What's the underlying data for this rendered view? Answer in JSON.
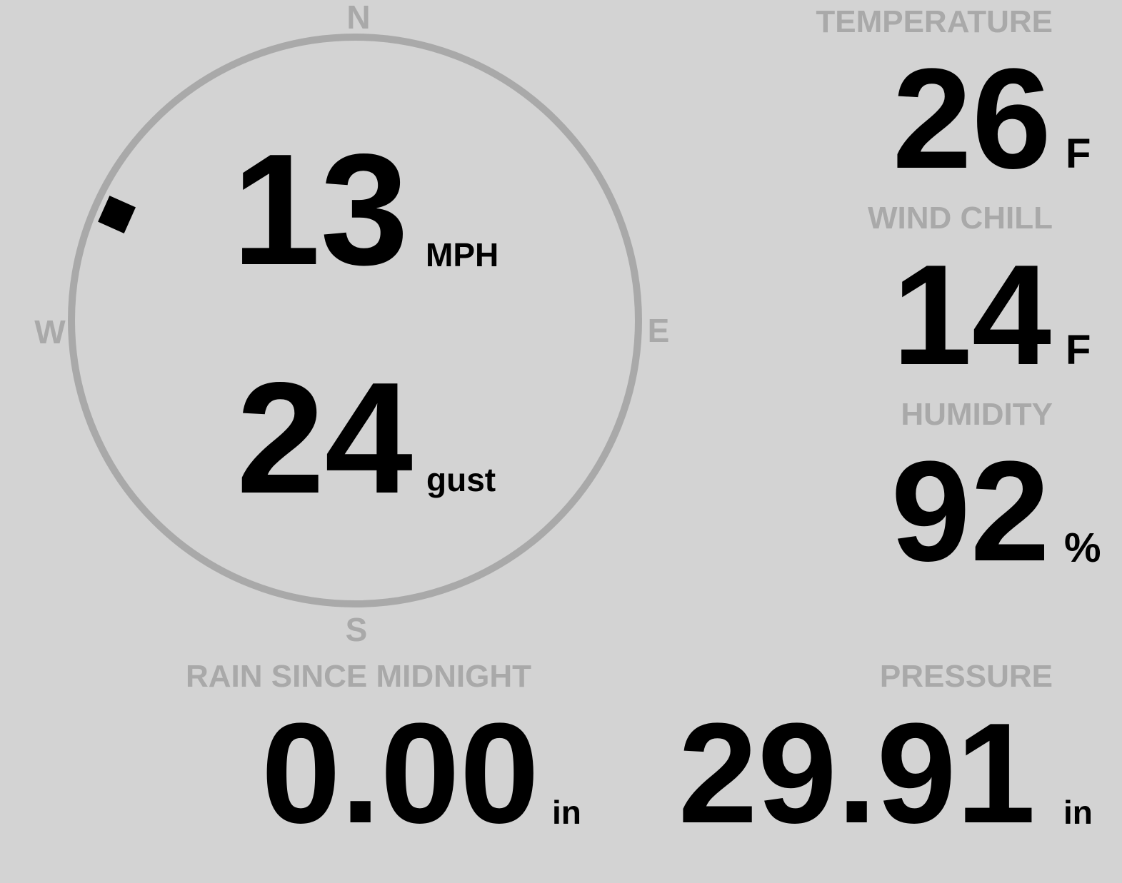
{
  "colors": {
    "background": "#d3d3d3",
    "label": "#a9a9a9",
    "value": "#000000"
  },
  "compass": {
    "north": "N",
    "south": "S",
    "east": "E",
    "west": "W",
    "wind_direction_deg": 294
  },
  "wind": {
    "speed": "13",
    "speed_unit": "MPH",
    "gust": "24",
    "gust_unit": "gust"
  },
  "temperature": {
    "label": "TEMPERATURE",
    "value": "26",
    "unit": "F"
  },
  "wind_chill": {
    "label": "WIND CHILL",
    "value": "14",
    "unit": "F"
  },
  "humidity": {
    "label": "HUMIDITY",
    "value": "92",
    "unit": "%"
  },
  "rain": {
    "label": "RAIN SINCE MIDNIGHT",
    "value": "0.00",
    "unit": "in"
  },
  "pressure": {
    "label": "PRESSURE",
    "value": "29.91",
    "unit": "in"
  }
}
